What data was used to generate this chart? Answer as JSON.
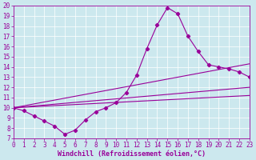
{
  "xlabel": "Windchill (Refroidissement éolien,°C)",
  "bg_color": "#cce8ee",
  "line_color": "#990099",
  "xlim": [
    0,
    23
  ],
  "ylim": [
    7,
    20
  ],
  "xticks": [
    0,
    1,
    2,
    3,
    4,
    5,
    6,
    7,
    8,
    9,
    10,
    11,
    12,
    13,
    14,
    15,
    16,
    17,
    18,
    19,
    20,
    21,
    22,
    23
  ],
  "yticks": [
    7,
    8,
    9,
    10,
    11,
    12,
    13,
    14,
    15,
    16,
    17,
    18,
    19,
    20
  ],
  "line1_x": [
    0,
    1,
    2,
    3,
    4,
    5,
    6,
    7,
    8,
    9,
    10,
    11,
    12,
    13,
    14,
    15,
    16,
    17,
    18,
    19,
    20,
    21,
    22,
    23
  ],
  "line1_y": [
    10.0,
    9.7,
    9.2,
    8.7,
    8.2,
    7.4,
    7.8,
    8.8,
    9.6,
    10.0,
    10.5,
    11.5,
    13.2,
    15.8,
    18.1,
    19.8,
    19.2,
    17.0,
    15.5,
    14.2,
    14.0,
    13.8,
    13.5,
    13.0
  ],
  "line2_x": [
    0,
    23
  ],
  "line2_y": [
    10.0,
    14.3
  ],
  "line3_x": [
    0,
    23
  ],
  "line3_y": [
    10.0,
    12.0
  ],
  "line4_x": [
    0,
    23
  ],
  "line4_y": [
    10.0,
    11.2
  ],
  "grid_color": "#ffffff",
  "tick_fontsize": 5.5,
  "xlabel_fontsize": 6
}
